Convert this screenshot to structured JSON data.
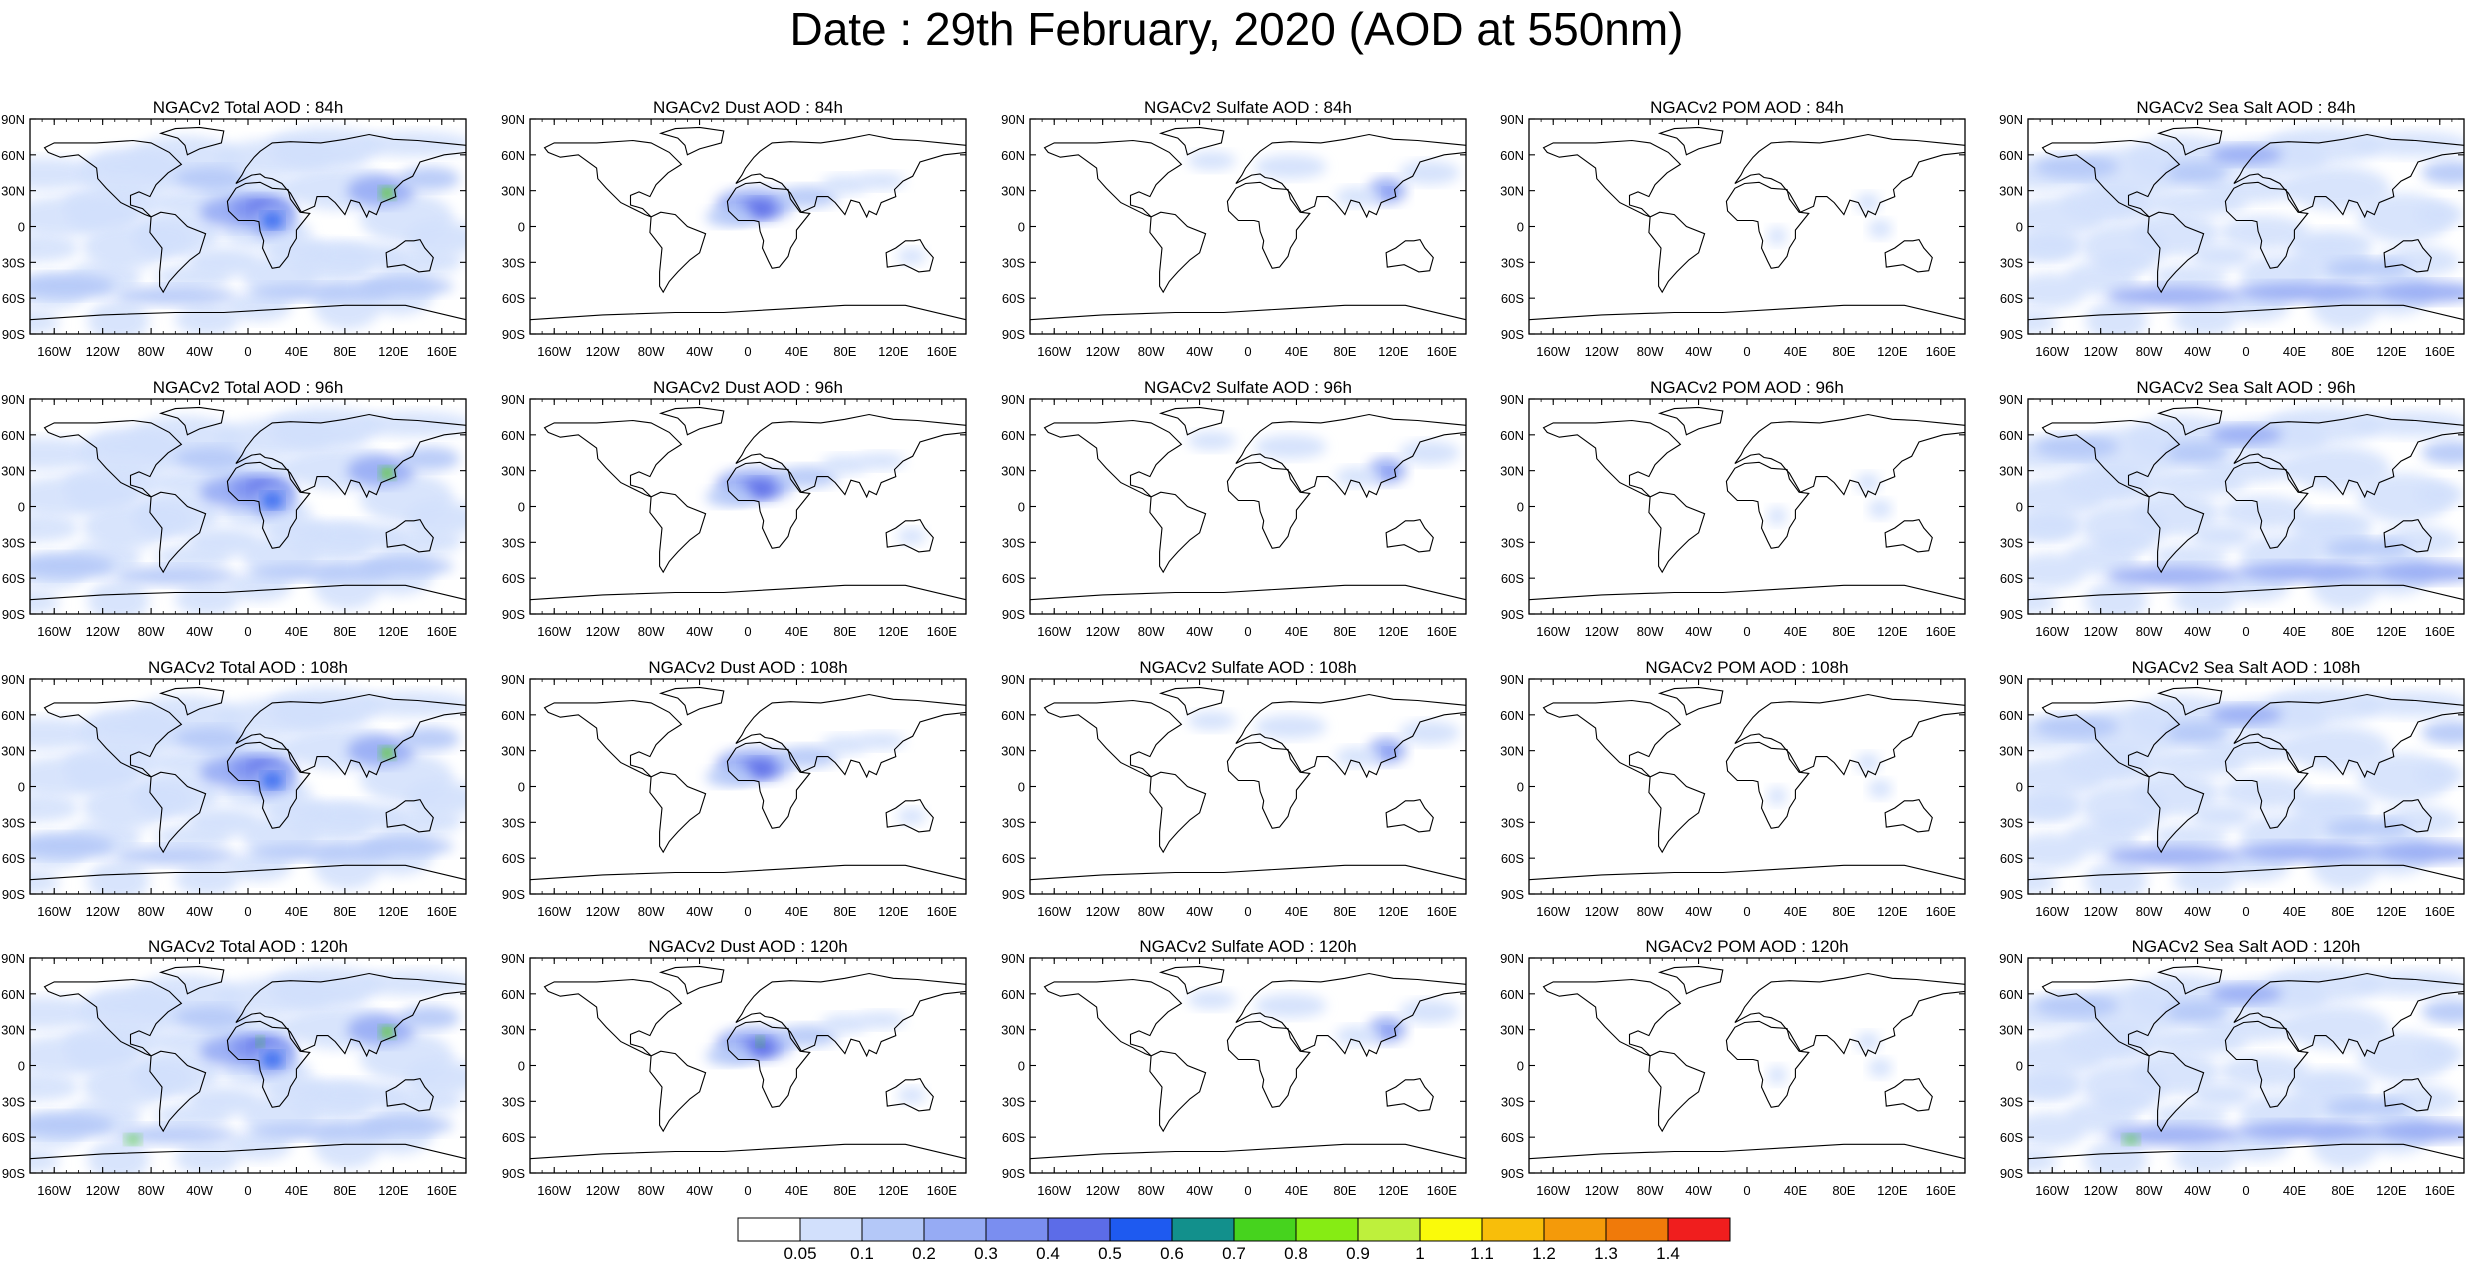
{
  "title": "Date : 29th February, 2020 (AOD at 550nm)",
  "panels": [
    [
      "NGACv2 Total AOD : 84h",
      "NGACv2 Dust AOD : 84h",
      "NGACv2 Sulfate AOD : 84h",
      "NGACv2 POM AOD : 84h",
      "NGACv2 Sea Salt AOD : 84h"
    ],
    [
      "NGACv2 Total AOD : 96h",
      "NGACv2 Dust AOD : 96h",
      "NGACv2 Sulfate AOD : 96h",
      "NGACv2 POM AOD : 96h",
      "NGACv2 Sea Salt AOD : 96h"
    ],
    [
      "NGACv2 Total AOD : 108h",
      "NGACv2 Dust AOD : 108h",
      "NGACv2 Sulfate AOD : 108h",
      "NGACv2 POM AOD : 108h",
      "NGACv2 Sea Salt AOD : 108h"
    ],
    [
      "NGACv2 Total AOD : 120h",
      "NGACv2 Dust AOD : 120h",
      "NGACv2 Sulfate AOD : 120h",
      "NGACv2 POM AOD : 120h",
      "NGACv2 Sea Salt  AOD : 120h"
    ]
  ],
  "lat_ticks": [
    "90N",
    "60N",
    "30N",
    "0",
    "30S",
    "60S",
    "90S"
  ],
  "lon_ticks": [
    "160W",
    "120W",
    "80W",
    "40W",
    "0",
    "40E",
    "80E",
    "120E",
    "160E"
  ],
  "colorbar": {
    "labels": [
      "0.05",
      "0.1",
      "0.2",
      "0.3",
      "0.4",
      "0.5",
      "0.6",
      "0.7",
      "0.8",
      "0.9",
      "1",
      "1.1",
      "1.2",
      "1.3",
      "1.4"
    ],
    "colors": [
      "#ffffff",
      "#d2e0fc",
      "#b4c8f8",
      "#96abf4",
      "#7a8ef0",
      "#5c6ce8",
      "#1e5af0",
      "#12908c",
      "#46d31e",
      "#86ec14",
      "#bef03c",
      "#fafa0a",
      "#f8be0a",
      "#f49a0a",
      "#f07a0a",
      "#f01e1e"
    ]
  }
}
